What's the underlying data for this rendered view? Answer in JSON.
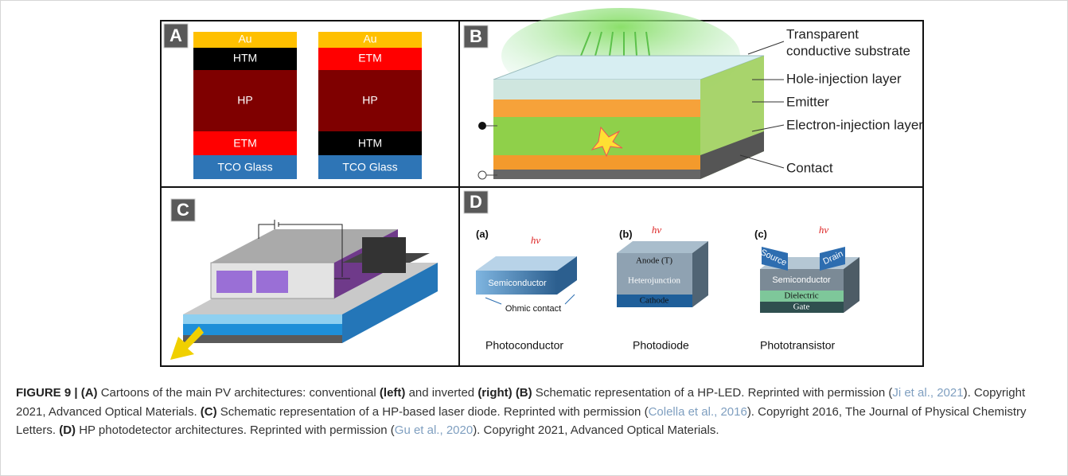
{
  "panel_a": {
    "label": "A",
    "conventional": [
      "Au",
      "HTM",
      "HP",
      "ETM",
      "TCO Glass"
    ],
    "inverted": [
      "Au",
      "ETM",
      "HP",
      "HTM",
      "TCO Glass"
    ]
  },
  "panel_b": {
    "label": "B",
    "callouts": [
      "Transparent",
      "conductive substrate",
      "Hole-injection layer",
      "Emitter",
      "Electron-injection layer",
      "Contact"
    ]
  },
  "panel_c": {
    "label": "C"
  },
  "panel_d": {
    "label": "D",
    "devices": [
      {
        "tag": "(a)",
        "hv": "hv",
        "layers": [
          "Semiconductor",
          "Ohmic contact"
        ],
        "name": "Photoconductor"
      },
      {
        "tag": "(b)",
        "hv": "hv",
        "layers": [
          "Anode (T)",
          "Heterojunction",
          "Cathode"
        ],
        "name": "Photodiode"
      },
      {
        "tag": "(c)",
        "hv": "hv",
        "layers": [
          "Source",
          "Drain",
          "Semiconductor",
          "Dielectric",
          "Gate"
        ],
        "name": "Phototransistor"
      }
    ]
  },
  "caption": {
    "segments": [
      {
        "text": "FIGURE 9 | (A)",
        "style": "bold"
      },
      {
        "text": " Cartoons of the main PV architectures: conventional ",
        "style": "plain"
      },
      {
        "text": "(left)",
        "style": "bold"
      },
      {
        "text": " and inverted ",
        "style": "plain"
      },
      {
        "text": "(right)",
        "style": "bold"
      },
      {
        "text": " ",
        "style": "plain"
      },
      {
        "text": "(B)",
        "style": "bold"
      },
      {
        "text": " Schematic representation of a HP-LED. Reprinted with permission (",
        "style": "plain"
      },
      {
        "text": "Ji et al., 2021",
        "style": "link"
      },
      {
        "text": "). Copyright 2021, Advanced Optical Materials. ",
        "style": "plain"
      },
      {
        "text": "(C)",
        "style": "bold"
      },
      {
        "text": " Schematic representation of a HP-based laser diode. Reprinted with permission (",
        "style": "plain"
      },
      {
        "text": "Colella et al., 2016",
        "style": "link"
      },
      {
        "text": "). Copyright 2016, The Journal of Physical Chemistry Letters. ",
        "style": "plain"
      },
      {
        "text": "(D)",
        "style": "bold"
      },
      {
        "text": " HP photodetector architectures. Reprinted with permission (",
        "style": "plain"
      },
      {
        "text": "Gu et al., 2020",
        "style": "link"
      },
      {
        "text": "). Copyright 2021, Advanced Optical Materials.",
        "style": "plain"
      }
    ]
  }
}
